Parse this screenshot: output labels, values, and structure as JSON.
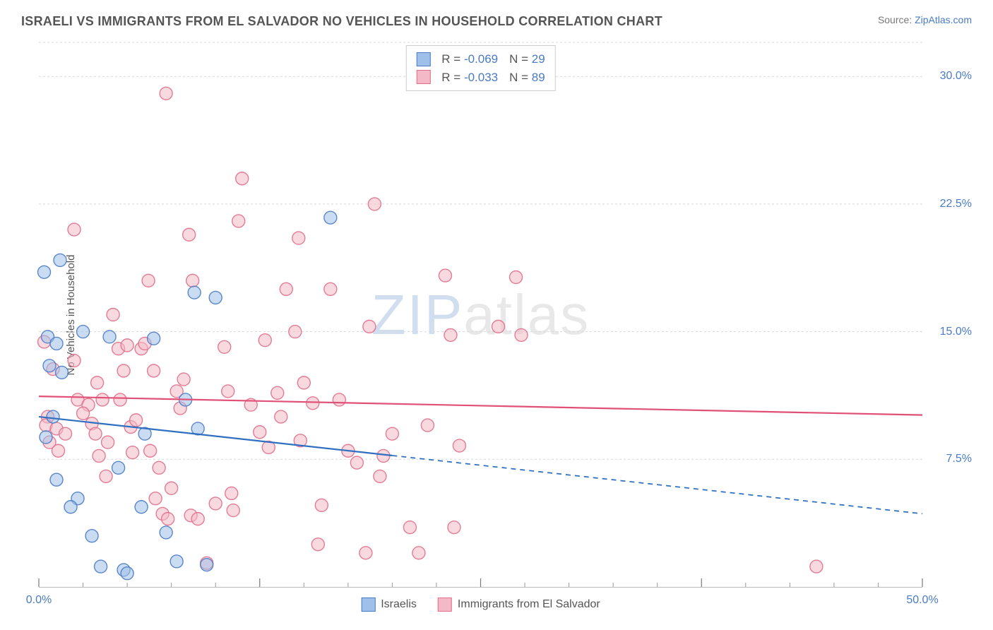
{
  "header": {
    "title": "ISRAELI VS IMMIGRANTS FROM EL SALVADOR NO VEHICLES IN HOUSEHOLD CORRELATION CHART",
    "source_prefix": "Source: ",
    "source_link": "ZipAtlas.com"
  },
  "watermark": {
    "zip": "ZIP",
    "atlas": "atlas"
  },
  "chart": {
    "type": "scatter",
    "ylabel": "No Vehicles in Household",
    "xlim": [
      0,
      50
    ],
    "ylim": [
      0,
      32
    ],
    "background_color": "#ffffff",
    "grid_color": "#d9d9d9",
    "grid_dash": "3,3",
    "yticks": [
      {
        "v": 7.5,
        "label": "7.5%"
      },
      {
        "v": 15.0,
        "label": "15.0%"
      },
      {
        "v": 22.5,
        "label": "22.5%"
      },
      {
        "v": 30.0,
        "label": "30.0%"
      }
    ],
    "xticks_major": [
      0,
      25,
      50,
      12.5,
      37.5
    ],
    "xticks_minor": [
      2.5,
      5,
      7.5,
      10,
      15,
      17.5,
      20,
      22.5,
      27.5,
      30,
      32.5,
      35,
      40,
      42.5,
      45,
      47.5
    ],
    "xtick_labels": [
      {
        "v": 0,
        "label": "0.0%"
      },
      {
        "v": 50,
        "label": "50.0%"
      }
    ],
    "marker_radius": 9,
    "marker_opacity": 0.55,
    "marker_stroke_width": 1.4,
    "line_width": 2.2,
    "series": [
      {
        "key": "israelis",
        "label": "Israelis",
        "fill": "#9fc0e8",
        "stroke": "#4a7bc7",
        "line_color": "#2f6fc1",
        "R": "-0.069",
        "N": "29",
        "trend": {
          "x1": 0,
          "y1": 10.0,
          "x2": 50,
          "y2": 4.3,
          "solid_until_x": 20
        },
        "points": [
          [
            0.3,
            18.5
          ],
          [
            1.2,
            19.2
          ],
          [
            0.5,
            14.7
          ],
          [
            1.0,
            14.3
          ],
          [
            0.6,
            13.0
          ],
          [
            1.3,
            12.6
          ],
          [
            0.8,
            10.0
          ],
          [
            0.4,
            8.8
          ],
          [
            1.0,
            6.3
          ],
          [
            2.2,
            5.2
          ],
          [
            1.8,
            4.7
          ],
          [
            3.0,
            3.0
          ],
          [
            4.5,
            7.0
          ],
          [
            3.5,
            1.2
          ],
          [
            4.8,
            1.0
          ],
          [
            4.0,
            14.7
          ],
          [
            5.8,
            4.7
          ],
          [
            6.5,
            14.6
          ],
          [
            7.2,
            3.2
          ],
          [
            7.8,
            1.5
          ],
          [
            8.3,
            11.0
          ],
          [
            9.5,
            1.3
          ],
          [
            10.0,
            17.0
          ],
          [
            8.8,
            17.3
          ],
          [
            9.0,
            9.3
          ],
          [
            6.0,
            9.0
          ],
          [
            16.5,
            21.7
          ],
          [
            5.0,
            0.8
          ],
          [
            2.5,
            15.0
          ]
        ]
      },
      {
        "key": "elsalvador",
        "label": "Immigrants from El Salvador",
        "fill": "#f3b9c6",
        "stroke": "#e16f8b",
        "line_color": "#e05077",
        "R": "-0.033",
        "N": "89",
        "trend": {
          "x1": 0,
          "y1": 11.2,
          "x2": 50,
          "y2": 10.1,
          "solid_until_x": 50
        },
        "points": [
          [
            0.3,
            14.4
          ],
          [
            0.8,
            12.8
          ],
          [
            0.5,
            10.0
          ],
          [
            0.4,
            9.5
          ],
          [
            1.0,
            9.3
          ],
          [
            0.6,
            8.5
          ],
          [
            1.1,
            8.0
          ],
          [
            2.0,
            13.3
          ],
          [
            2.2,
            11.0
          ],
          [
            2.8,
            10.7
          ],
          [
            2.5,
            10.2
          ],
          [
            3.0,
            9.6
          ],
          [
            3.2,
            9.0
          ],
          [
            1.5,
            9.0
          ],
          [
            2.0,
            21.0
          ],
          [
            3.3,
            12.0
          ],
          [
            3.6,
            11.0
          ],
          [
            3.9,
            8.5
          ],
          [
            3.4,
            7.7
          ],
          [
            3.8,
            6.5
          ],
          [
            4.2,
            16.0
          ],
          [
            4.5,
            14.0
          ],
          [
            4.8,
            12.7
          ],
          [
            4.6,
            11.0
          ],
          [
            5.0,
            14.2
          ],
          [
            5.2,
            9.4
          ],
          [
            5.5,
            9.8
          ],
          [
            5.3,
            7.9
          ],
          [
            5.8,
            14.0
          ],
          [
            6.0,
            14.3
          ],
          [
            6.2,
            18.0
          ],
          [
            6.5,
            12.7
          ],
          [
            6.3,
            8.0
          ],
          [
            6.8,
            7.0
          ],
          [
            6.6,
            5.2
          ],
          [
            7.0,
            4.3
          ],
          [
            7.3,
            4.0
          ],
          [
            7.5,
            5.8
          ],
          [
            7.8,
            11.5
          ],
          [
            8.0,
            10.5
          ],
          [
            8.2,
            12.2
          ],
          [
            8.5,
            20.7
          ],
          [
            8.7,
            18.0
          ],
          [
            8.6,
            4.2
          ],
          [
            9.0,
            4.0
          ],
          [
            9.5,
            1.4
          ],
          [
            10.0,
            4.9
          ],
          [
            7.2,
            29.0
          ],
          [
            10.5,
            14.1
          ],
          [
            10.7,
            11.5
          ],
          [
            10.9,
            5.5
          ],
          [
            11.0,
            4.5
          ],
          [
            11.5,
            24.0
          ],
          [
            11.3,
            21.5
          ],
          [
            12.0,
            10.7
          ],
          [
            12.5,
            9.1
          ],
          [
            12.8,
            14.5
          ],
          [
            13.0,
            8.2
          ],
          [
            13.5,
            11.4
          ],
          [
            13.7,
            10.0
          ],
          [
            14.0,
            17.5
          ],
          [
            14.5,
            15.0
          ],
          [
            14.7,
            20.5
          ],
          [
            14.8,
            8.6
          ],
          [
            15.0,
            12.0
          ],
          [
            15.5,
            10.8
          ],
          [
            15.8,
            2.5
          ],
          [
            16.0,
            4.8
          ],
          [
            16.5,
            17.5
          ],
          [
            17.0,
            11.0
          ],
          [
            17.5,
            8.0
          ],
          [
            18.0,
            7.3
          ],
          [
            18.5,
            2.0
          ],
          [
            18.7,
            15.3
          ],
          [
            19.0,
            22.5
          ],
          [
            19.3,
            6.5
          ],
          [
            19.5,
            7.7
          ],
          [
            20.0,
            9.0
          ],
          [
            21.0,
            3.5
          ],
          [
            21.5,
            2.0
          ],
          [
            22.0,
            9.5
          ],
          [
            23.0,
            18.3
          ],
          [
            23.3,
            14.8
          ],
          [
            23.5,
            3.5
          ],
          [
            26.0,
            15.3
          ],
          [
            27.0,
            18.2
          ],
          [
            27.3,
            14.8
          ],
          [
            44.0,
            1.2
          ],
          [
            23.8,
            8.3
          ]
        ]
      }
    ]
  },
  "legend_bottom": [
    {
      "label": "Israelis",
      "fill": "#9fc0e8",
      "stroke": "#4a7bc7"
    },
    {
      "label": "Immigrants from El Salvador",
      "fill": "#f3b9c6",
      "stroke": "#e16f8b"
    }
  ]
}
